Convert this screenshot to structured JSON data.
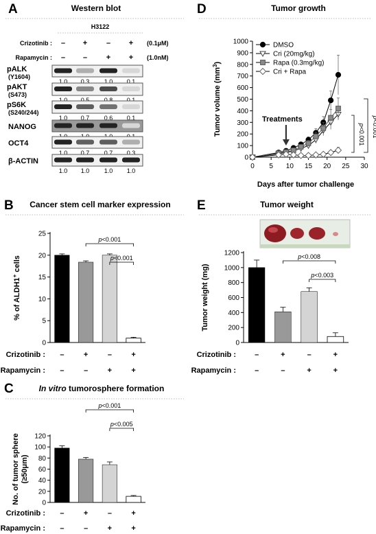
{
  "panelA": {
    "letter": "A",
    "title": "Western blot",
    "cell_line": "H3122",
    "treat_rows": [
      {
        "label": "Crizotinib :",
        "signs": [
          "–",
          "+",
          "–",
          "+"
        ],
        "conc": "(0.1μM)"
      },
      {
        "label": "Rapamycin :",
        "signs": [
          "–",
          "–",
          "+",
          "+"
        ],
        "conc": "(1.0nM)"
      }
    ],
    "blots": [
      {
        "label": "pALK",
        "sub": "(Y1604)",
        "values": [
          "1.0",
          "0.3",
          "1.0",
          "0.1"
        ],
        "intensity": [
          1.0,
          0.3,
          1.0,
          0.1
        ]
      },
      {
        "label": "pAKT",
        "sub": "(S473)",
        "values": [
          "1.0",
          "0.5",
          "0.8",
          "0.1"
        ],
        "intensity": [
          1.0,
          0.5,
          0.8,
          0.1
        ]
      },
      {
        "label": "pS6K",
        "sub": "(S240/244)",
        "values": [
          "1.0",
          "0.7",
          "0.6",
          "0.1"
        ],
        "intensity": [
          1.0,
          0.7,
          0.6,
          0.1
        ]
      },
      {
        "label": "NANOG",
        "sub": "",
        "values": [
          "1.0",
          "1.0",
          "1.0",
          "0.1"
        ],
        "intensity": [
          1.0,
          1.0,
          1.0,
          0.1
        ]
      },
      {
        "label": "OCT4",
        "sub": "",
        "values": [
          "1.0",
          "0.7",
          "0.7",
          "0.3"
        ],
        "intensity": [
          1.0,
          0.7,
          0.7,
          0.3
        ]
      },
      {
        "label": "β-ACTIN",
        "sub": "",
        "values": [
          "1.0",
          "1.0",
          "1.0",
          "1.0"
        ],
        "intensity": [
          1.0,
          1.0,
          1.0,
          1.0
        ]
      }
    ]
  },
  "treat_labels": {
    "crizotinib": "Crizotinib :",
    "rapamycin": "Rapamycin :"
  },
  "treat_signs": {
    "crizotinib": [
      "–",
      "+",
      "–",
      "+"
    ],
    "rapamycin": [
      "–",
      "–",
      "+",
      "+"
    ]
  },
  "colors": {
    "black": "#000000",
    "dark_gray": "#999999",
    "light_gray": "#d4d4d4",
    "white": "#ffffff"
  },
  "chart_data": [
    {
      "id": "B",
      "type": "bar",
      "letter": "B",
      "title": "Cancer stem cell marker expression",
      "ylabel": "% of ALDH1⁺ cells",
      "ylim": [
        0,
        25
      ],
      "yticks": [
        0,
        5,
        10,
        15,
        20,
        25
      ],
      "categories": [
        "–/–",
        "+/–",
        "–/+",
        "+/+"
      ],
      "values": [
        20,
        18.4,
        20,
        1
      ],
      "errors": [
        0.3,
        0.3,
        0.3,
        0.2
      ],
      "annotations": [
        {
          "text": "p<0.001",
          "from": 1,
          "to": 3
        },
        {
          "text": "p<0.001",
          "from": 2,
          "to": 3
        }
      ]
    },
    {
      "id": "C",
      "type": "bar",
      "letter": "C",
      "title": "In vitro tumorosphere formation",
      "title_italic": "In vitro",
      "title_rest": " tumorosphere formation",
      "ylabel": "No. of tumor  sphere",
      "ylabel2": "(≥50μm)",
      "ylim": [
        0,
        120
      ],
      "yticks": [
        0,
        20,
        40,
        60,
        80,
        100,
        120
      ],
      "categories": [
        "–/–",
        "+/–",
        "–/+",
        "+/+"
      ],
      "values": [
        98,
        78,
        68,
        11
      ],
      "errors": [
        4,
        3,
        5,
        1.5
      ],
      "annotations": [
        {
          "text": "p<0.001",
          "from": 1,
          "to": 3
        },
        {
          "text": "p<0.005",
          "from": 2,
          "to": 3
        }
      ]
    },
    {
      "id": "D",
      "type": "line",
      "letter": "D",
      "title": "Tumor growth",
      "xlabel": "Days after tumor challenge",
      "ylabel": "Tumor volume (mm³)",
      "xlim": [
        0,
        30
      ],
      "ylim": [
        0,
        1000
      ],
      "xticks": [
        0,
        5,
        10,
        15,
        20,
        25,
        30
      ],
      "yticks": [
        0,
        100,
        200,
        300,
        400,
        500,
        600,
        700,
        800,
        900,
        1000
      ],
      "x": [
        0,
        7,
        9,
        11,
        13,
        15,
        17,
        19,
        21,
        23
      ],
      "series": [
        {
          "name": "DMSO",
          "marker": "circle",
          "values": [
            0,
            40,
            55,
            80,
            110,
            150,
            210,
            300,
            490,
            710
          ],
          "errors": [
            0,
            8,
            10,
            15,
            20,
            25,
            35,
            50,
            80,
            170
          ]
        },
        {
          "name": "Cri (20mg/kg)",
          "marker": "triangle",
          "values": [
            0,
            30,
            40,
            55,
            75,
            100,
            150,
            230,
            300,
            370
          ],
          "errors": [
            0,
            6,
            8,
            10,
            12,
            20,
            30,
            45,
            60,
            50
          ]
        },
        {
          "name": "Rapa (0.3mg/kg)",
          "marker": "square",
          "values": [
            0,
            35,
            45,
            60,
            90,
            120,
            180,
            250,
            340,
            420
          ],
          "errors": [
            0,
            7,
            9,
            12,
            18,
            25,
            35,
            50,
            70,
            90
          ]
        },
        {
          "name": "Cri + Rapa",
          "marker": "diamond",
          "values": [
            0,
            20,
            25,
            20,
            15,
            15,
            20,
            25,
            40,
            60
          ],
          "errors": [
            0,
            5,
            5,
            5,
            5,
            5,
            8,
            10,
            15,
            25
          ]
        }
      ],
      "annotation": "Treatments",
      "annotation_x": 9,
      "pvalues": [
        "p<0.001",
        "p<0.001"
      ]
    },
    {
      "id": "E",
      "type": "bar",
      "letter": "E",
      "title": "Tumor weight",
      "ylabel": "Tumor weight (mg)",
      "ylim": [
        0,
        1200
      ],
      "yticks": [
        0,
        200,
        400,
        600,
        800,
        1000,
        1200
      ],
      "categories": [
        "–/–",
        "+/–",
        "–/+",
        "+/+"
      ],
      "values": [
        1000,
        410,
        680,
        80
      ],
      "errors": [
        100,
        60,
        50,
        50
      ],
      "annotations": [
        {
          "text": "p<0.008",
          "from": 1,
          "to": 3
        },
        {
          "text": "p<0.003",
          "from": 2,
          "to": 3
        }
      ]
    }
  ]
}
